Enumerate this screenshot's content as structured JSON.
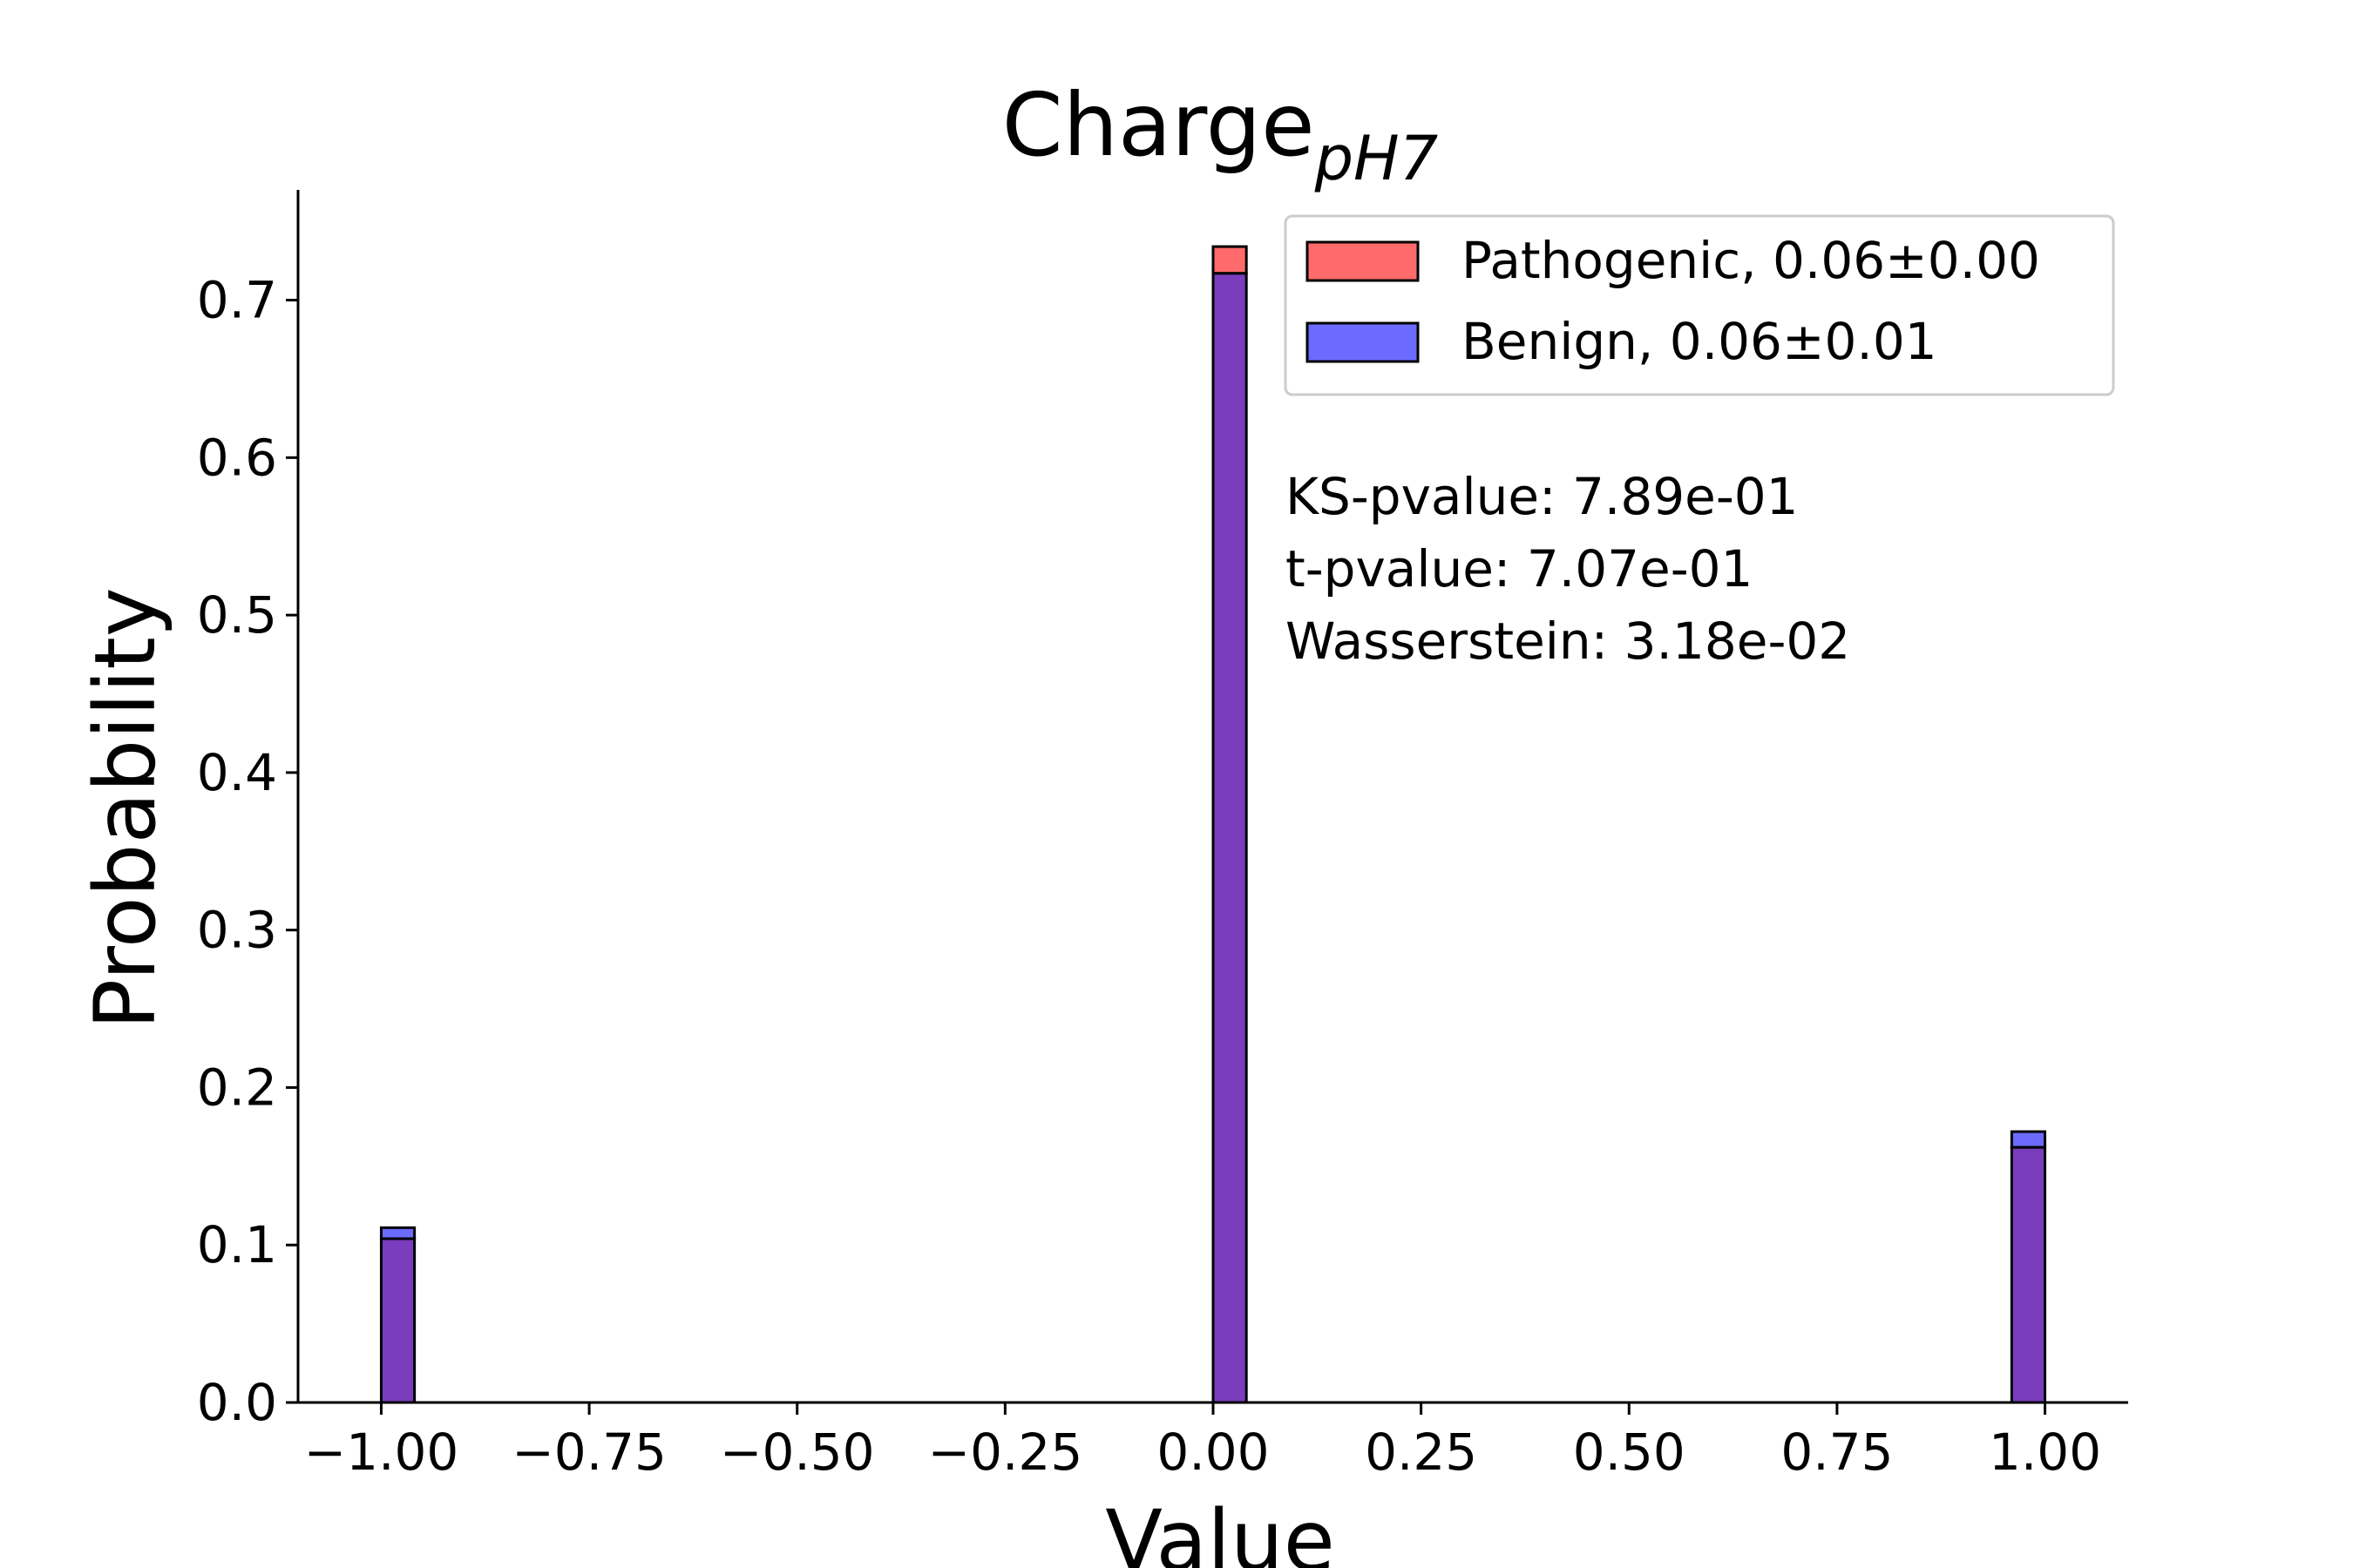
{
  "chart_data": {
    "type": "bar",
    "title": "Charge",
    "title_subscript": "pH7",
    "xlabel": "Value",
    "ylabel": "Probability",
    "xlim": [
      -1.1,
      1.1
    ],
    "ylim": [
      0,
      0.77
    ],
    "xticks": [
      -1.0,
      -0.75,
      -0.5,
      -0.25,
      0.0,
      0.25,
      0.5,
      0.75,
      1.0
    ],
    "xtick_labels": [
      "−1.00",
      "−0.75",
      "−0.50",
      "−0.25",
      "0.00",
      "0.25",
      "0.50",
      "0.75",
      "1.00"
    ],
    "yticks": [
      0.0,
      0.1,
      0.2,
      0.3,
      0.4,
      0.5,
      0.6,
      0.7
    ],
    "ytick_labels": [
      "0.0",
      "0.1",
      "0.2",
      "0.3",
      "0.4",
      "0.5",
      "0.6",
      "0.7"
    ],
    "bin_width": 0.04,
    "grid": false,
    "legend_position": "top-right",
    "series": [
      {
        "name": "Pathogenic, 0.06±0.00",
        "color": "#ff6b6b",
        "bins": [
          {
            "left": -1.0,
            "value": 0.104
          },
          {
            "left": 0.0,
            "value": 0.734
          },
          {
            "left": 0.96,
            "value": 0.162
          }
        ]
      },
      {
        "name": "Benign, 0.06±0.01",
        "color": "#6b6bff",
        "bins": [
          {
            "left": -1.0,
            "value": 0.111
          },
          {
            "left": 0.0,
            "value": 0.717
          },
          {
            "left": 0.96,
            "value": 0.172
          }
        ]
      }
    ],
    "overlap_color": "#7a3dbd",
    "annotations": [
      "KS-pvalue: 7.89e-01",
      "t-pvalue: 7.07e-01",
      "Wasserstein: 3.18e-02"
    ]
  }
}
